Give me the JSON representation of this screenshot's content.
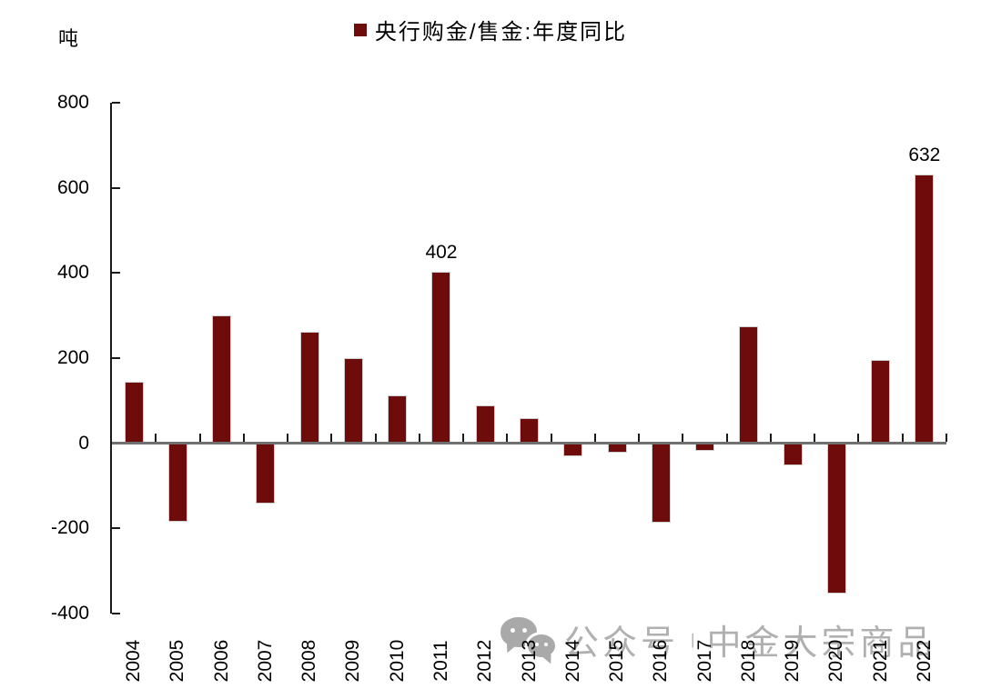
{
  "header": {
    "unit_label": "吨",
    "legend": {
      "label": "央行购金/售金:年度同比",
      "marker_color": "#6E0B0B"
    }
  },
  "watermark": {
    "icon": "wechat-icon",
    "left_text": "公众号",
    "separator": "|",
    "right_text": "中金大宗商品",
    "color": "#A8A8A8"
  },
  "chart_data": {
    "type": "bar",
    "title": "央行购金/售金:年度同比",
    "ylabel": "吨",
    "xlabel": "",
    "categories": [
      "2004",
      "2005",
      "2006",
      "2007",
      "2008",
      "2009",
      "2010",
      "2011",
      "2012",
      "2013",
      "2014",
      "2015",
      "2016",
      "2017",
      "2018",
      "2019",
      "2020",
      "2021",
      "2022"
    ],
    "values": [
      145,
      -185,
      300,
      -142,
      262,
      200,
      112,
      402,
      88,
      60,
      -30,
      -22,
      -186,
      -18,
      275,
      -52,
      -352,
      195,
      632
    ],
    "ylim": [
      -400,
      800
    ],
    "yticks": [
      800,
      600,
      400,
      200,
      0,
      -200,
      -400
    ],
    "annotations": [
      {
        "category": "2011",
        "value": 402,
        "text": "402"
      },
      {
        "category": "2022",
        "value": 632,
        "text": "632"
      }
    ],
    "bar_color": "#6E0B0B",
    "bar_border_color": "#CFCFCF",
    "zero_line_color": "#707070",
    "axis_color": "#1A1A1A",
    "legend_position": "top-center",
    "grid": false
  }
}
